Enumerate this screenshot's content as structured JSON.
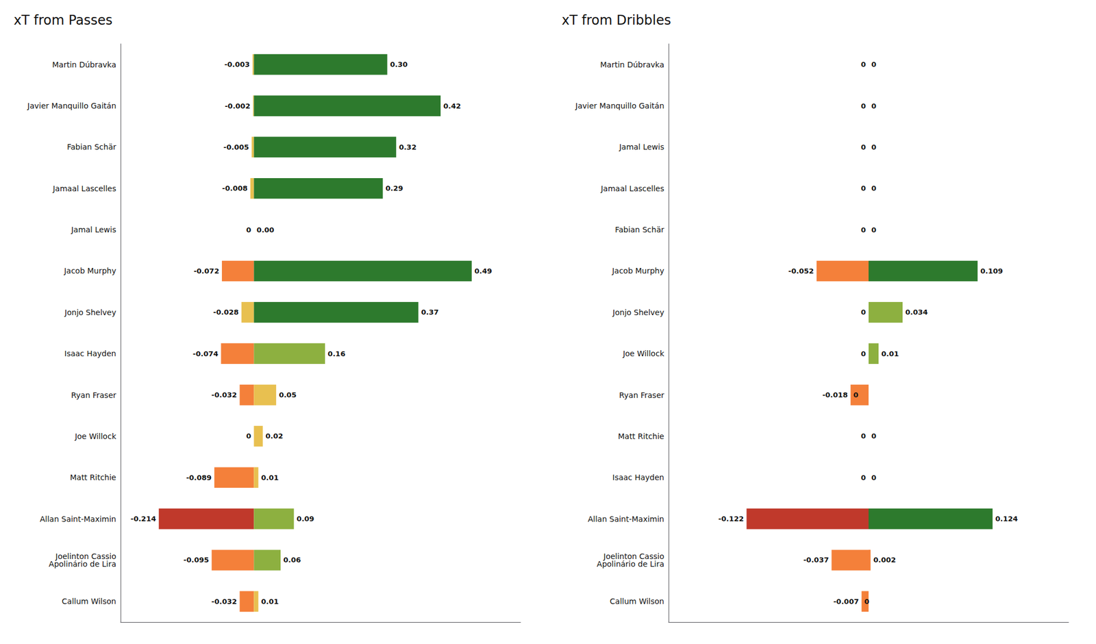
{
  "chart_data": [
    {
      "type": "bar",
      "orientation": "horizontal",
      "stacked": true,
      "grid": false,
      "tick_labels": "y",
      "data_labels": true,
      "title": "xT from Passes",
      "categories": [
        "Martin Dúbravka",
        "Javier Manquillo Gaitán",
        "Fabian Schär",
        "Jamaal Lascelles",
        "Jamal Lewis",
        "Jacob Murphy",
        "Jonjo Shelvey",
        "Isaac Hayden",
        "Ryan Fraser",
        "Joe Willock",
        "Matt Ritchie",
        "Allan Saint-Maximin",
        "Joelinton Cassio\nApolinário de Lira",
        "Callum Wilson"
      ],
      "xlim": [
        -0.3,
        0.6
      ],
      "series": [
        {
          "values": [
            -0.003,
            -0.002,
            -0.005,
            -0.008,
            0,
            -0.072,
            -0.028,
            -0.074,
            -0.032,
            0,
            -0.089,
            -0.214,
            -0.095,
            -0.032
          ],
          "value_labels": [
            "-0.003",
            "-0.002",
            "-0.005",
            "-0.008",
            "0",
            "-0.072",
            "-0.028",
            "-0.074",
            "-0.032",
            "0",
            "-0.089",
            "-0.214",
            "-0.095",
            "-0.032"
          ],
          "colors": [
            "#e8c050",
            "#e8c050",
            "#e8c050",
            "#e8c050",
            "#e8c050",
            "#f4803a",
            "#e8c050",
            "#f4803a",
            "#f4803a",
            "#f4803a",
            "#f4803a",
            "#c0392b",
            "#f4803a",
            "#f4803a"
          ]
        },
        {
          "values": [
            0.3,
            0.42,
            0.32,
            0.29,
            0.0,
            0.49,
            0.37,
            0.16,
            0.05,
            0.02,
            0.01,
            0.09,
            0.06,
            0.01
          ],
          "value_labels": [
            "0.30",
            "0.42",
            "0.32",
            "0.29",
            "0.00",
            "0.49",
            "0.37",
            "0.16",
            "0.05",
            "0.02",
            "0.01",
            "0.09",
            "0.06",
            "0.01"
          ],
          "colors": [
            "#2d7a2d",
            "#2d7a2d",
            "#2d7a2d",
            "#2d7a2d",
            "#2d7a2d",
            "#2d7a2d",
            "#2d7a2d",
            "#8db040",
            "#e8c050",
            "#e8c050",
            "#e8c050",
            "#8db040",
            "#8db040",
            "#e8c050"
          ]
        }
      ]
    },
    {
      "type": "bar",
      "orientation": "horizontal",
      "stacked": true,
      "grid": false,
      "tick_labels": "y",
      "data_labels": true,
      "title": "xT from Dribbles",
      "categories": [
        "Martin Dúbravka",
        "Javier Manquillo Gaitán",
        "Jamal Lewis",
        "Jamaal Lascelles",
        "Fabian Schär",
        "Jacob Murphy",
        "Jonjo Shelvey",
        "Joe Willock",
        "Ryan Fraser",
        "Matt Ritchie",
        "Isaac Hayden",
        "Allan Saint-Maximin",
        "Joelinton Cassio\nApolinário de Lira",
        "Callum Wilson"
      ],
      "xlim": [
        -0.2,
        0.2
      ],
      "series": [
        {
          "values": [
            0,
            0,
            0,
            0,
            0,
            -0.052,
            0,
            0,
            -0.018,
            0,
            0,
            -0.122,
            -0.037,
            -0.007
          ],
          "value_labels": [
            "0",
            "0",
            "0",
            "0",
            "0",
            "-0.052",
            "0",
            "0",
            "-0.018",
            "0",
            "0",
            "-0.122",
            "-0.037",
            "-0.007"
          ],
          "colors": [
            "#e8c050",
            "#e8c050",
            "#e8c050",
            "#e8c050",
            "#e8c050",
            "#f4803a",
            "#e8c050",
            "#e8c050",
            "#f4803a",
            "#e8c050",
            "#e8c050",
            "#c0392b",
            "#f4803a",
            "#f4803a"
          ]
        },
        {
          "values": [
            0,
            0,
            0,
            0,
            0,
            0.109,
            0.034,
            0.01,
            0,
            0,
            0,
            0.124,
            0.002,
            0
          ],
          "value_labels": [
            "0",
            "0",
            "0",
            "0",
            "0",
            "0.109",
            "0.034",
            "0.01",
            "0",
            "0",
            "0",
            "0.124",
            "0.002",
            "0"
          ],
          "colors": [
            "#2d7a2d",
            "#2d7a2d",
            "#2d7a2d",
            "#2d7a2d",
            "#2d7a2d",
            "#2d7a2d",
            "#8db040",
            "#8db040",
            "#e8c050",
            "#e8c050",
            "#e8c050",
            "#2d7a2d",
            "#f4803a",
            "#e8c050"
          ]
        }
      ]
    }
  ]
}
